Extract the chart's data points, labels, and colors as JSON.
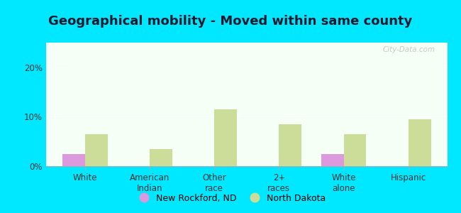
{
  "title": "Geographical mobility - Moved within same county",
  "categories": [
    "White",
    "American\nIndian",
    "Other\nrace",
    "2+\nraces",
    "White\nalone",
    "Hispanic"
  ],
  "new_rockford": [
    2.5,
    0.0,
    0.0,
    0.0,
    2.5,
    0.0
  ],
  "north_dakota": [
    6.5,
    3.5,
    11.5,
    8.5,
    6.5,
    9.5
  ],
  "new_rockford_color": "#dd99dd",
  "north_dakota_color": "#ccdd99",
  "background_outer": "#00e8ff",
  "background_inner": "#f5fff5",
  "ylim": [
    0,
    25
  ],
  "yticks": [
    0,
    10,
    20
  ],
  "ytick_labels": [
    "0%",
    "10%",
    "20%"
  ],
  "bar_width": 0.35,
  "legend_new_rockford": "New Rockford, ND",
  "legend_north_dakota": "North Dakota",
  "watermark": "City-Data.com",
  "title_fontsize": 13,
  "tick_fontsize": 8.5,
  "legend_fontsize": 9,
  "title_color": "#1a1a2e"
}
